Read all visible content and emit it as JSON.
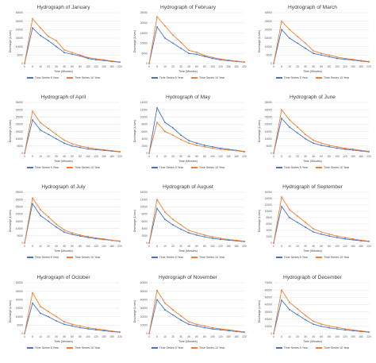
{
  "colors": {
    "series_5yr": "#4472c4",
    "series_10yr": "#ed7d31",
    "grid": "#d9d9d9",
    "text": "#595959"
  },
  "chart_data": [
    {
      "type": "line",
      "title": "Hydrograph of January",
      "xlabel": "Time (Minutes)",
      "ylabel": "Discharge (L/sec)",
      "x": [
        0,
        5,
        10,
        20,
        30,
        45,
        60,
        80,
        100,
        120,
        150,
        180,
        220
      ],
      "x_ticks": [
        "0",
        "5",
        "10",
        "20",
        "30",
        "45",
        "60",
        "80",
        "100",
        "120",
        "150",
        "180",
        "220"
      ],
      "y_ticks": [
        "0",
        "5000",
        "10000",
        "15000",
        "20000",
        "25000",
        "30000"
      ],
      "ylim": [
        0,
        30000
      ],
      "grid": true,
      "legend": "bottom",
      "series": [
        {
          "name": "Time Series 5 Year",
          "values": [
            0,
            21000,
            16500,
            13500,
            10000,
            6500,
            5500,
            4500,
            3000,
            2200,
            1800,
            1200,
            800
          ]
        },
        {
          "name": "Time Series 10 Year",
          "values": [
            0,
            26500,
            21000,
            16000,
            13500,
            8000,
            6500,
            5000,
            3500,
            2800,
            2200,
            1500,
            1000
          ]
        }
      ]
    },
    {
      "type": "line",
      "title": "Hydrograph of February",
      "xlabel": "Time (Minutes)",
      "ylabel": "Discharge (L/sec)",
      "x": [
        0,
        5,
        10,
        20,
        30,
        45,
        60,
        80,
        100,
        120,
        150,
        180,
        220
      ],
      "x_ticks": [
        "0",
        "5",
        "10",
        "20",
        "30",
        "45",
        "60",
        "80",
        "100",
        "120",
        "150",
        "180",
        "220"
      ],
      "y_ticks": [
        "0",
        "5000",
        "10000",
        "15000",
        "20000",
        "25000"
      ],
      "ylim": [
        0,
        25000
      ],
      "grid": true,
      "legend": "bottom",
      "series": [
        {
          "name": "Time Series 5 Year",
          "values": [
            0,
            18000,
            12500,
            10000,
            7500,
            5000,
            4500,
            3500,
            2500,
            1800,
            1400,
            1000,
            700
          ]
        },
        {
          "name": "Time Series 10 Year",
          "values": [
            0,
            23000,
            18500,
            14000,
            10500,
            6500,
            5500,
            4000,
            3000,
            2200,
            1700,
            1200,
            800
          ]
        }
      ]
    },
    {
      "type": "line",
      "title": "Hydrograph of March",
      "xlabel": "Time (Minutes)",
      "ylabel": "Discharge (L/sec)",
      "x": [
        0,
        5,
        10,
        20,
        30,
        45,
        60,
        80,
        100,
        120,
        150,
        180,
        220
      ],
      "x_ticks": [
        "0",
        "5",
        "10",
        "20",
        "30",
        "45",
        "60",
        "80",
        "100",
        "120",
        "150",
        "180",
        "220"
      ],
      "y_ticks": [
        "0",
        "5000",
        "10000",
        "15000",
        "20000",
        "25000",
        "30000"
      ],
      "ylim": [
        0,
        30000
      ],
      "grid": true,
      "legend": "bottom",
      "series": [
        {
          "name": "Time Series 5 Year",
          "values": [
            0,
            20000,
            15000,
            12000,
            9000,
            6000,
            5000,
            4000,
            3000,
            2500,
            2000,
            1500,
            1000
          ]
        },
        {
          "name": "Time Series 10 Year",
          "values": [
            0,
            25000,
            20000,
            16000,
            12000,
            7500,
            6000,
            5000,
            3800,
            3000,
            2400,
            1800,
            1200
          ]
        }
      ]
    },
    {
      "type": "line",
      "title": "Hydrograph of April",
      "xlabel": "Time (Minutes)",
      "ylabel": "Discharge (L/sec)",
      "x": [
        0,
        5,
        10,
        20,
        30,
        45,
        60,
        80,
        100,
        120,
        150,
        180,
        220
      ],
      "x_ticks": [
        "0",
        "5",
        "10",
        "20",
        "30",
        "45",
        "60",
        "80",
        "100",
        "120",
        "150",
        "180",
        "220"
      ],
      "y_ticks": [
        "0",
        "5000",
        "10000",
        "15000",
        "20000",
        "25000",
        "30000",
        "35000"
      ],
      "ylim": [
        0,
        35000
      ],
      "grid": true,
      "legend": "bottom",
      "series": [
        {
          "name": "Time Series 5 Year",
          "values": [
            0,
            23000,
            16000,
            13000,
            10000,
            7000,
            5000,
            4000,
            3000,
            2500,
            2000,
            1500,
            1000
          ]
        },
        {
          "name": "Time Series 10 Year",
          "values": [
            0,
            29000,
            21000,
            17000,
            13000,
            9000,
            6500,
            5000,
            4000,
            3000,
            2500,
            1800,
            1200
          ]
        }
      ]
    },
    {
      "type": "line",
      "title": "Hydrograph of May",
      "xlabel": "Time (Minutes)",
      "ylabel": "Discharge (L/sec)",
      "x": [
        0,
        5,
        10,
        20,
        30,
        45,
        60,
        80,
        100,
        120,
        150,
        180,
        220
      ],
      "x_ticks": [
        "0",
        "5",
        "10",
        "20",
        "30",
        "45",
        "60",
        "80",
        "100",
        "120",
        "150",
        "180",
        "220"
      ],
      "y_ticks": [
        "0",
        "2000",
        "4000",
        "6000",
        "8000",
        "10000",
        "12000",
        "14000"
      ],
      "ylim": [
        0,
        14000
      ],
      "grid": true,
      "legend": "bottom",
      "series": [
        {
          "name": "Time Series 5 Year",
          "values": [
            0,
            12500,
            8500,
            7000,
            5000,
            3500,
            2800,
            2200,
            1800,
            1400,
            1100,
            800,
            500
          ]
        },
        {
          "name": "Time Series 10 Year",
          "values": [
            0,
            8500,
            6000,
            5000,
            3800,
            2800,
            2200,
            1800,
            1400,
            1100,
            900,
            700,
            400
          ]
        }
      ]
    },
    {
      "type": "line",
      "title": "Hydrograph of June",
      "xlabel": "Time (Minutes)",
      "ylabel": "Discharge (L/sec)",
      "x": [
        0,
        5,
        10,
        20,
        30,
        45,
        60,
        80,
        100,
        120,
        150,
        180,
        220
      ],
      "x_ticks": [
        "0",
        "5",
        "10",
        "20",
        "30",
        "45",
        "60",
        "80",
        "100",
        "120",
        "150",
        "180",
        "220"
      ],
      "y_ticks": [
        "0",
        "5000",
        "10000",
        "15000",
        "20000",
        "25000",
        "30000",
        "35000"
      ],
      "ylim": [
        0,
        35000
      ],
      "grid": true,
      "legend": "bottom",
      "series": [
        {
          "name": "Time Series 5 Year",
          "values": [
            0,
            24000,
            18000,
            14000,
            10000,
            7000,
            5500,
            4500,
            3500,
            2800,
            2200,
            1600,
            1000
          ]
        },
        {
          "name": "Time Series 10 Year",
          "values": [
            0,
            30000,
            23000,
            18000,
            13000,
            9000,
            7000,
            5500,
            4500,
            3500,
            2800,
            2000,
            1300
          ]
        }
      ]
    },
    {
      "type": "line",
      "title": "Hydrograph of July",
      "xlabel": "Time (Minutes)",
      "ylabel": "Discharge (L/sec)",
      "x": [
        0,
        5,
        10,
        20,
        30,
        45,
        60,
        80,
        100,
        120,
        150,
        180,
        220
      ],
      "x_ticks": [
        "0",
        "5",
        "10",
        "20",
        "30",
        "45",
        "60",
        "80",
        "100",
        "120",
        "150",
        "180",
        "220"
      ],
      "y_ticks": [
        "0",
        "5000",
        "10000",
        "15000",
        "20000",
        "25000",
        "30000",
        "35000"
      ],
      "ylim": [
        0,
        35000
      ],
      "grid": true,
      "legend": "bottom",
      "series": [
        {
          "name": "Time Series 5 Year",
          "values": [
            0,
            27000,
            19000,
            15000,
            11000,
            7500,
            6000,
            4800,
            3800,
            3000,
            2400,
            1800,
            1200
          ]
        },
        {
          "name": "Time Series 10 Year",
          "values": [
            0,
            31000,
            23000,
            18000,
            13000,
            9000,
            7000,
            5500,
            4500,
            3500,
            2800,
            2000,
            1400
          ]
        }
      ]
    },
    {
      "type": "line",
      "title": "Hydrograph of August",
      "xlabel": "Time (Minutes)",
      "ylabel": "Discharge (L/sec)",
      "x": [
        0,
        5,
        10,
        20,
        30,
        45,
        60,
        80,
        100,
        120,
        150,
        180,
        220
      ],
      "x_ticks": [
        "0",
        "5",
        "10",
        "20",
        "30",
        "45",
        "60",
        "80",
        "100",
        "120",
        "150",
        "180",
        "220"
      ],
      "y_ticks": [
        "0",
        "2000",
        "4000",
        "6000",
        "8000",
        "10000",
        "12000",
        "14000"
      ],
      "ylim": [
        0,
        14000
      ],
      "grid": true,
      "legend": "bottom",
      "series": [
        {
          "name": "Time Series 5 Year",
          "values": [
            0,
            9500,
            6500,
            5000,
            3800,
            2800,
            2200,
            1700,
            1300,
            1000,
            800,
            600,
            400
          ]
        },
        {
          "name": "Time Series 10 Year",
          "values": [
            0,
            12000,
            8500,
            6500,
            5000,
            3500,
            2800,
            2200,
            1700,
            1300,
            1000,
            750,
            500
          ]
        }
      ]
    },
    {
      "type": "line",
      "title": "Hydrograph of September",
      "xlabel": "Time (Minutes)",
      "ylabel": "Discharge (L/sec)",
      "x": [
        0,
        5,
        10,
        20,
        30,
        45,
        60,
        80,
        100,
        120,
        150,
        180,
        220
      ],
      "x_ticks": [
        "0",
        "5",
        "10",
        "20",
        "30",
        "45",
        "60",
        "80",
        "100",
        "120",
        "150",
        "180",
        "220"
      ],
      "y_ticks": [
        "0",
        "2000",
        "4000",
        "6000",
        "8000",
        "10000",
        "12000",
        "14000",
        "16000"
      ],
      "ylim": [
        0,
        16000
      ],
      "grid": true,
      "legend": "bottom",
      "series": [
        {
          "name": "Time Series 5 Year",
          "values": [
            0,
            11500,
            8000,
            6500,
            5000,
            3500,
            2800,
            2200,
            1700,
            1300,
            1000,
            700,
            500
          ]
        },
        {
          "name": "Time Series 10 Year",
          "values": [
            0,
            14500,
            10500,
            8500,
            6500,
            4500,
            3500,
            2800,
            2200,
            1700,
            1300,
            900,
            600
          ]
        }
      ]
    },
    {
      "type": "line",
      "title": "Hydrograph of October",
      "xlabel": "Time (Minutes)",
      "ylabel": "Discharge (L/sec)",
      "x": [
        0,
        5,
        10,
        20,
        30,
        45,
        60,
        80,
        100,
        120,
        150,
        180,
        220
      ],
      "x_ticks": [
        "0",
        "5",
        "10",
        "20",
        "30",
        "45",
        "60",
        "80",
        "100",
        "120",
        "150",
        "180",
        "220"
      ],
      "y_ticks": [
        "0",
        "5000",
        "10000",
        "15000",
        "20000",
        "25000",
        "30000"
      ],
      "ylim": [
        0,
        30000
      ],
      "grid": true,
      "legend": "bottom",
      "series": [
        {
          "name": "Time Series 5 Year",
          "values": [
            0,
            18000,
            12000,
            10000,
            7500,
            5500,
            4500,
            3500,
            2800,
            2200,
            1700,
            1200,
            800
          ]
        },
        {
          "name": "Time Series 10 Year",
          "values": [
            0,
            24000,
            16000,
            13000,
            10000,
            7000,
            5500,
            4500,
            3500,
            2800,
            2200,
            1500,
            1000
          ]
        }
      ]
    },
    {
      "type": "line",
      "title": "Hydrograph of November",
      "xlabel": "Time (Minutes)",
      "ylabel": "Discharge (L/sec)",
      "x": [
        0,
        5,
        10,
        20,
        30,
        45,
        60,
        80,
        100,
        120,
        150,
        180,
        220
      ],
      "x_ticks": [
        "0",
        "5",
        "10",
        "20",
        "30",
        "45",
        "60",
        "80",
        "100",
        "120",
        "150",
        "180",
        "220"
      ],
      "y_ticks": [
        "0",
        "10000",
        "20000",
        "30000",
        "40000",
        "50000",
        "60000"
      ],
      "ylim": [
        0,
        60000
      ],
      "grid": true,
      "legend": "bottom",
      "series": [
        {
          "name": "Time Series 5 Year",
          "values": [
            0,
            40000,
            28000,
            22000,
            16000,
            11000,
            9000,
            7000,
            5500,
            4500,
            3500,
            2500,
            1500
          ]
        },
        {
          "name": "Time Series 10 Year",
          "values": [
            0,
            51000,
            36000,
            28000,
            21000,
            14000,
            11000,
            9000,
            7000,
            5500,
            4500,
            3200,
            2000
          ]
        }
      ]
    },
    {
      "type": "line",
      "title": "Hydrograph of December",
      "xlabel": "Time (Minutes)",
      "ylabel": "Discharge (L/sec)",
      "x": [
        0,
        5,
        10,
        20,
        30,
        45,
        60,
        80,
        100,
        120,
        150,
        180,
        220
      ],
      "x_ticks": [
        "0",
        "5",
        "10",
        "20",
        "30",
        "45",
        "60",
        "80",
        "100",
        "120",
        "150",
        "180",
        "220"
      ],
      "y_ticks": [
        "0",
        "10000",
        "20000",
        "30000",
        "40000",
        "50000",
        "60000",
        "70000"
      ],
      "ylim": [
        0,
        70000
      ],
      "grid": true,
      "legend": "bottom",
      "series": [
        {
          "name": "Time Series 5 Year",
          "values": [
            0,
            46000,
            33000,
            26000,
            19000,
            13000,
            10000,
            8000,
            6500,
            5000,
            4000,
            3000,
            2000
          ]
        },
        {
          "name": "Time Series 10 Year",
          "values": [
            0,
            60000,
            43000,
            34000,
            25000,
            17000,
            13000,
            10500,
            8500,
            6500,
            5000,
            3800,
            2500
          ]
        }
      ]
    }
  ]
}
